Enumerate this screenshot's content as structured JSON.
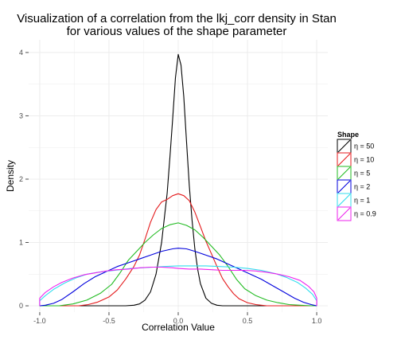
{
  "chart_data": {
    "type": "line",
    "title_lines": [
      "Visualization of a correlation from the lkj_corr density in Stan",
      "for various values of the shape parameter"
    ],
    "xlabel": "Correlation Value",
    "ylabel": "Density",
    "xlim": [
      -1.08,
      1.08
    ],
    "ylim": [
      -0.1,
      4.2
    ],
    "x_ticks": [
      -1.0,
      -0.5,
      0.0,
      0.5,
      1.0
    ],
    "x_tick_labels": [
      "-1.0",
      "-0.5",
      "0.0",
      "0.5",
      "1.0"
    ],
    "y_ticks": [
      0,
      1,
      2,
      3,
      4
    ],
    "y_tick_labels": [
      "0",
      "1",
      "2",
      "3",
      "4"
    ],
    "grid": true,
    "background": "#ffffff",
    "grid_color": "#ececec",
    "legend_position": "right",
    "legend_title": "Shape",
    "series": [
      {
        "name": "η = 50",
        "color": "#000000",
        "points": [
          [
            -1.0,
            0.0
          ],
          [
            -0.38,
            0.0
          ],
          [
            -0.32,
            0.01
          ],
          [
            -0.28,
            0.03
          ],
          [
            -0.24,
            0.09
          ],
          [
            -0.2,
            0.22
          ],
          [
            -0.16,
            0.5
          ],
          [
            -0.12,
            1.0
          ],
          [
            -0.08,
            1.78
          ],
          [
            -0.06,
            2.35
          ],
          [
            -0.04,
            2.95
          ],
          [
            -0.02,
            3.6
          ],
          [
            0.0,
            3.97
          ],
          [
            0.02,
            3.8
          ],
          [
            0.04,
            3.3
          ],
          [
            0.06,
            2.6
          ],
          [
            0.08,
            1.9
          ],
          [
            0.1,
            1.35
          ],
          [
            0.12,
            0.9
          ],
          [
            0.14,
            0.58
          ],
          [
            0.16,
            0.35
          ],
          [
            0.2,
            0.12
          ],
          [
            0.24,
            0.04
          ],
          [
            0.28,
            0.01
          ],
          [
            0.32,
            0.0
          ],
          [
            1.0,
            0.0
          ]
        ]
      },
      {
        "name": "η = 10",
        "color": "#e41a1c",
        "points": [
          [
            -1.0,
            0.0
          ],
          [
            -0.72,
            0.0
          ],
          [
            -0.65,
            0.02
          ],
          [
            -0.58,
            0.06
          ],
          [
            -0.5,
            0.14
          ],
          [
            -0.44,
            0.25
          ],
          [
            -0.38,
            0.42
          ],
          [
            -0.32,
            0.62
          ],
          [
            -0.28,
            0.8
          ],
          [
            -0.24,
            1.05
          ],
          [
            -0.2,
            1.32
          ],
          [
            -0.16,
            1.52
          ],
          [
            -0.12,
            1.64
          ],
          [
            -0.08,
            1.68
          ],
          [
            -0.04,
            1.74
          ],
          [
            0.0,
            1.77
          ],
          [
            0.04,
            1.74
          ],
          [
            0.08,
            1.66
          ],
          [
            0.12,
            1.48
          ],
          [
            0.16,
            1.25
          ],
          [
            0.2,
            1.02
          ],
          [
            0.24,
            0.82
          ],
          [
            0.28,
            0.62
          ],
          [
            0.32,
            0.43
          ],
          [
            0.36,
            0.3
          ],
          [
            0.4,
            0.19
          ],
          [
            0.44,
            0.11
          ],
          [
            0.5,
            0.05
          ],
          [
            0.56,
            0.02
          ],
          [
            0.64,
            0.0
          ],
          [
            1.0,
            0.0
          ]
        ]
      },
      {
        "name": "η = 5",
        "color": "#22bb22",
        "points": [
          [
            -1.0,
            0.0
          ],
          [
            -0.86,
            0.0
          ],
          [
            -0.76,
            0.03
          ],
          [
            -0.66,
            0.09
          ],
          [
            -0.56,
            0.2
          ],
          [
            -0.48,
            0.34
          ],
          [
            -0.42,
            0.52
          ],
          [
            -0.36,
            0.72
          ],
          [
            -0.3,
            0.86
          ],
          [
            -0.24,
            1.0
          ],
          [
            -0.18,
            1.12
          ],
          [
            -0.12,
            1.22
          ],
          [
            -0.06,
            1.28
          ],
          [
            0.0,
            1.31
          ],
          [
            0.06,
            1.27
          ],
          [
            0.12,
            1.2
          ],
          [
            0.18,
            1.08
          ],
          [
            0.24,
            0.94
          ],
          [
            0.3,
            0.8
          ],
          [
            0.36,
            0.62
          ],
          [
            0.42,
            0.42
          ],
          [
            0.48,
            0.27
          ],
          [
            0.56,
            0.16
          ],
          [
            0.64,
            0.09
          ],
          [
            0.72,
            0.05
          ],
          [
            0.8,
            0.02
          ],
          [
            0.88,
            0.01
          ],
          [
            0.96,
            0.0
          ],
          [
            1.0,
            0.0
          ]
        ]
      },
      {
        "name": "η = 2",
        "color": "#0000dd",
        "points": [
          [
            -1.0,
            0.0
          ],
          [
            -0.96,
            0.01
          ],
          [
            -0.9,
            0.04
          ],
          [
            -0.84,
            0.1
          ],
          [
            -0.76,
            0.22
          ],
          [
            -0.68,
            0.35
          ],
          [
            -0.6,
            0.46
          ],
          [
            -0.52,
            0.54
          ],
          [
            -0.44,
            0.62
          ],
          [
            -0.36,
            0.68
          ],
          [
            -0.28,
            0.74
          ],
          [
            -0.2,
            0.8
          ],
          [
            -0.12,
            0.86
          ],
          [
            -0.04,
            0.9
          ],
          [
            0.0,
            0.91
          ],
          [
            0.06,
            0.9
          ],
          [
            0.12,
            0.86
          ],
          [
            0.2,
            0.8
          ],
          [
            0.28,
            0.74
          ],
          [
            0.36,
            0.66
          ],
          [
            0.44,
            0.58
          ],
          [
            0.52,
            0.5
          ],
          [
            0.6,
            0.42
          ],
          [
            0.68,
            0.32
          ],
          [
            0.76,
            0.22
          ],
          [
            0.84,
            0.12
          ],
          [
            0.9,
            0.06
          ],
          [
            0.96,
            0.02
          ],
          [
            1.0,
            0.0
          ]
        ]
      },
      {
        "name": "η = 1",
        "color": "#33ddee",
        "points": [
          [
            -1.0,
            0.0
          ],
          [
            -1.0,
            0.08
          ],
          [
            -0.96,
            0.16
          ],
          [
            -0.9,
            0.26
          ],
          [
            -0.82,
            0.36
          ],
          [
            -0.74,
            0.44
          ],
          [
            -0.66,
            0.5
          ],
          [
            -0.58,
            0.53
          ],
          [
            -0.5,
            0.55
          ],
          [
            -0.42,
            0.57
          ],
          [
            -0.34,
            0.59
          ],
          [
            -0.26,
            0.6
          ],
          [
            -0.18,
            0.61
          ],
          [
            -0.1,
            0.62
          ],
          [
            0.0,
            0.63
          ],
          [
            0.1,
            0.63
          ],
          [
            0.2,
            0.63
          ],
          [
            0.3,
            0.62
          ],
          [
            0.4,
            0.61
          ],
          [
            0.5,
            0.59
          ],
          [
            0.6,
            0.56
          ],
          [
            0.7,
            0.51
          ],
          [
            0.78,
            0.45
          ],
          [
            0.86,
            0.37
          ],
          [
            0.92,
            0.28
          ],
          [
            0.97,
            0.18
          ],
          [
            1.0,
            0.08
          ],
          [
            1.0,
            0.0
          ]
        ]
      },
      {
        "name": "η = 0.9",
        "color": "#ee22ee",
        "points": [
          [
            -1.0,
            0.0
          ],
          [
            -1.0,
            0.12
          ],
          [
            -0.96,
            0.21
          ],
          [
            -0.9,
            0.3
          ],
          [
            -0.84,
            0.37
          ],
          [
            -0.76,
            0.44
          ],
          [
            -0.68,
            0.49
          ],
          [
            -0.6,
            0.52
          ],
          [
            -0.52,
            0.55
          ],
          [
            -0.44,
            0.57
          ],
          [
            -0.36,
            0.58
          ],
          [
            -0.28,
            0.6
          ],
          [
            -0.2,
            0.61
          ],
          [
            -0.12,
            0.61
          ],
          [
            -0.04,
            0.6
          ],
          [
            0.0,
            0.59
          ],
          [
            0.08,
            0.58
          ],
          [
            0.16,
            0.58
          ],
          [
            0.24,
            0.57
          ],
          [
            0.32,
            0.56
          ],
          [
            0.4,
            0.56
          ],
          [
            0.48,
            0.56
          ],
          [
            0.56,
            0.55
          ],
          [
            0.64,
            0.53
          ],
          [
            0.72,
            0.5
          ],
          [
            0.8,
            0.46
          ],
          [
            0.88,
            0.4
          ],
          [
            0.94,
            0.31
          ],
          [
            0.98,
            0.22
          ],
          [
            1.0,
            0.12
          ],
          [
            1.0,
            0.0
          ]
        ]
      }
    ]
  }
}
